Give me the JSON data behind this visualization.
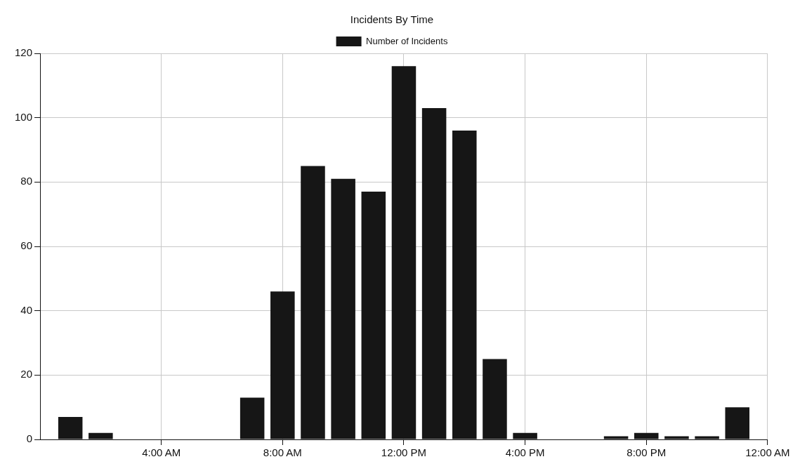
{
  "chart_data": {
    "type": "bar",
    "title": "Incidents By Time",
    "x": [
      1,
      2,
      3,
      4,
      5,
      6,
      7,
      8,
      9,
      10,
      11,
      12,
      13,
      14,
      15,
      16,
      17,
      18,
      19,
      20,
      21,
      22,
      23
    ],
    "series": [
      {
        "name": "Number of Incidents",
        "color": "#161616",
        "values": [
          7,
          2,
          0,
          0,
          0,
          0,
          13,
          46,
          85,
          81,
          77,
          116,
          103,
          96,
          25,
          2,
          0,
          0,
          1,
          2,
          1,
          1,
          10
        ]
      }
    ],
    "xlim": [
      0,
      24
    ],
    "xticks": [
      {
        "value": 4,
        "label": "4:00 AM"
      },
      {
        "value": 8,
        "label": "8:00 AM"
      },
      {
        "value": 12,
        "label": "12:00 PM"
      },
      {
        "value": 16,
        "label": "4:00 PM"
      },
      {
        "value": 20,
        "label": "8:00 PM"
      },
      {
        "value": 24,
        "label": "12:00 AM"
      }
    ],
    "ylim": [
      0,
      120
    ],
    "yticks": [
      0,
      20,
      40,
      60,
      80,
      100,
      120
    ],
    "grid": true,
    "legend": "top"
  }
}
